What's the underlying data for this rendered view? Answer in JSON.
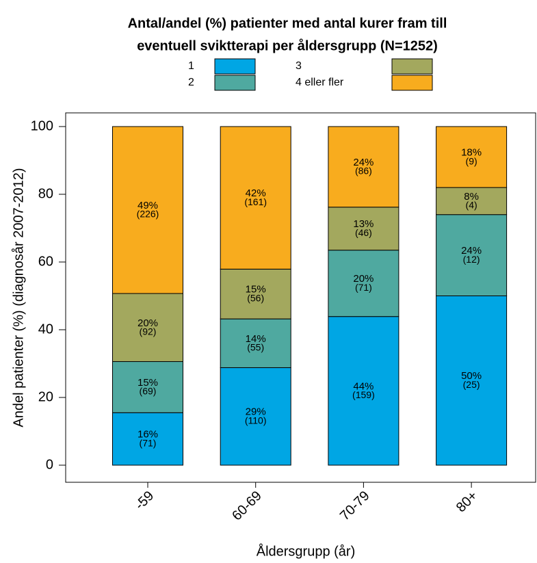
{
  "chart_data": {
    "type": "stacked_bar",
    "title": [
      "Antal/andel (%) patienter med antal kurer fram till",
      "eventuell sviktterapi per åldersgrupp (N=1252)"
    ],
    "x_label": "Åldersgrupp (år)",
    "y_label": "Andel patienter (%) (diagnosår 2007-2012)",
    "categories": [
      "-59",
      "60-69",
      "70-79",
      "80+"
    ],
    "series": [
      {
        "name": "1",
        "color": "#00a6e4",
        "values": [
          15.5,
          28.8,
          43.9,
          50
        ],
        "value_labels": [
          "16%",
          "29%",
          "44%",
          "50%"
        ],
        "count_labels": [
          "(71)",
          "(110)",
          "(159)",
          "(25)"
        ]
      },
      {
        "name": "2",
        "color": "#4fa9a0",
        "values": [
          15.1,
          14.4,
          19.6,
          24
        ],
        "value_labels": [
          "15%",
          "14%",
          "20%",
          "24%"
        ],
        "count_labels": [
          "(69)",
          "(55)",
          "(71)",
          "(12)"
        ]
      },
      {
        "name": "3",
        "color": "#a3a85e",
        "values": [
          20.1,
          14.7,
          12.7,
          8
        ],
        "value_labels": [
          "20%",
          "15%",
          "13%",
          "8%"
        ],
        "count_labels": [
          "(92)",
          "(56)",
          "(46)",
          "(4)"
        ]
      },
      {
        "name": "4 eller fler",
        "color": "#f8ac1e",
        "values": [
          49.3,
          42.1,
          23.8,
          18
        ],
        "value_labels": [
          "49%",
          "42%",
          "24%",
          "18%"
        ],
        "count_labels": [
          "(226)",
          "(161)",
          "(86)",
          "(9)"
        ]
      }
    ],
    "ylim": [
      0,
      100
    ],
    "yticks": [
      0,
      20,
      40,
      60,
      80,
      100
    ]
  }
}
